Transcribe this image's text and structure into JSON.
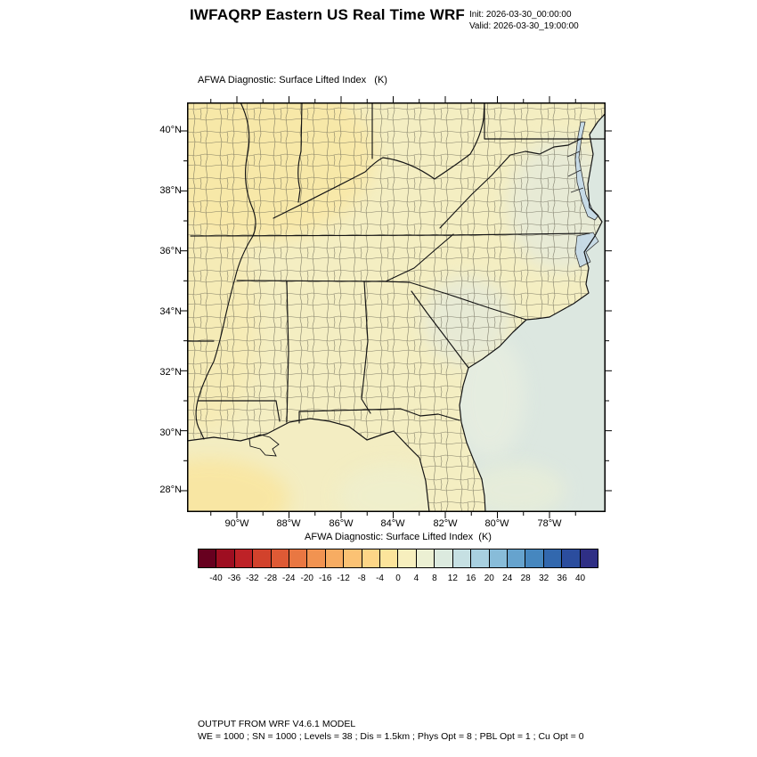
{
  "header": {
    "title": "IWFAQRP Eastern US Real Time WRF",
    "init_line": "Init: 2026-03-30_00:00:00",
    "valid_line": "Valid: 2026-03-30_19:00:00"
  },
  "map": {
    "subtitle": "AFWA Diagnostic: Surface Lifted Index   (K)",
    "lat_labels": [
      "40°N",
      "38°N",
      "36°N",
      "34°N",
      "32°N",
      "30°N",
      "28°N"
    ],
    "lon_labels": [
      "90°W",
      "88°W",
      "86°W",
      "84°W",
      "82°W",
      "80°W",
      "78°W"
    ],
    "colors": {
      "land": "#F4EEC2",
      "land_warm": "#F9E6A0",
      "coast_tint": "#DCE7E8",
      "ocean": "#DCE7E0",
      "ocean_light": "#E9EFE0",
      "ocean_green": "#ECF0D6",
      "gulf": "#F3EDC2",
      "gulf_warm": "#FAE59C",
      "gulf_east": "#EDF0D2",
      "bay": "#C6DAE6",
      "border": "#141414",
      "county": "#5D5B4A"
    }
  },
  "colorbar": {
    "label": "AFWA Diagnostic: Surface Lifted Index  (K)",
    "tick_labels": [
      "-40",
      "-36",
      "-32",
      "-28",
      "-24",
      "-20",
      "-16",
      "-12",
      "-8",
      "-4",
      "0",
      "4",
      "8",
      "12",
      "16",
      "20",
      "24",
      "28",
      "32",
      "36",
      "40"
    ],
    "colors": [
      "#67001F",
      "#9E0E21",
      "#BE2227",
      "#D2422C",
      "#DE5A35",
      "#E97742",
      "#F19351",
      "#F7AC62",
      "#FBC274",
      "#FDD687",
      "#FCE49B",
      "#F7EFBE",
      "#ECF0D3",
      "#DCEADF",
      "#C6E0E3",
      "#A8D0E0",
      "#88BCD9",
      "#66A3CE",
      "#4687BF",
      "#3268AE",
      "#2B4D9E",
      "#2F2F85"
    ]
  },
  "footer": {
    "line1": "OUTPUT FROM WRF V4.6.1 MODEL",
    "line2": "WE = 1000 ; SN = 1000 ; Levels = 38 ; Dis = 1.5km ; Phys Opt = 8 ; PBL Opt = 1 ; Cu Opt = 0"
  }
}
